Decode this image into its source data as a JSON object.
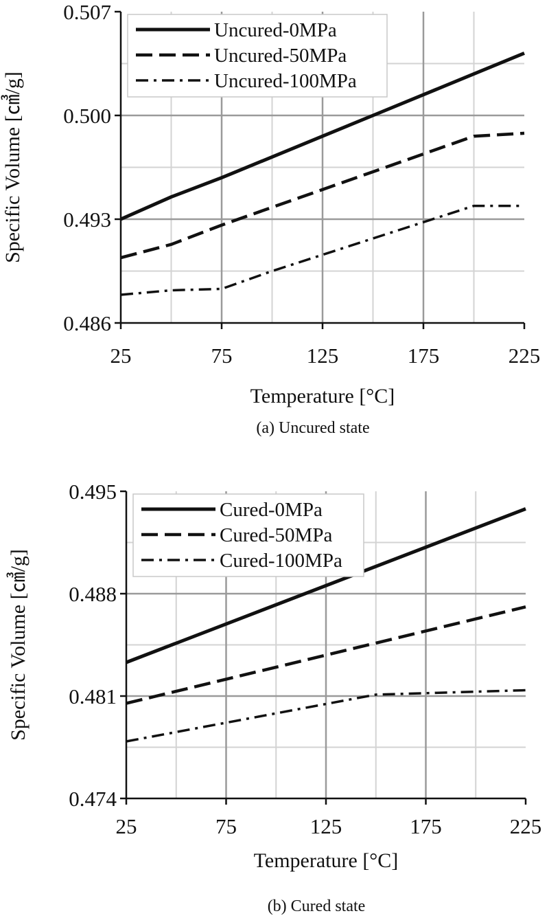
{
  "chart_data": [
    {
      "type": "line",
      "caption": "(a) Uncured state",
      "xlabel": "Temperature [°C]",
      "ylabel": "Specific Volume [㎤/g]",
      "xlim": [
        25,
        225
      ],
      "ylim": [
        0.486,
        0.507
      ],
      "xticks": [
        "25",
        "75",
        "125",
        "175",
        "225"
      ],
      "yticks": [
        "0.486",
        "0.493",
        "0.500",
        "0.507"
      ],
      "grid": true,
      "legend_position": "top-left",
      "series": [
        {
          "name": "Uncured-0MPa",
          "style": "solid",
          "x": [
            25,
            50,
            75,
            100,
            125,
            150,
            175,
            200,
            225
          ],
          "y": [
            0.493,
            0.4945,
            0.4958,
            0.4972,
            0.4986,
            0.5,
            0.5014,
            0.5028,
            0.5042
          ]
        },
        {
          "name": "Uncured-50MPa",
          "style": "dashed",
          "x": [
            25,
            50,
            75,
            100,
            125,
            150,
            175,
            200,
            225
          ],
          "y": [
            0.4904,
            0.4913,
            0.4926,
            0.4938,
            0.495,
            0.4962,
            0.4974,
            0.4986,
            0.4988
          ]
        },
        {
          "name": "Uncured-100MPa",
          "style": "dashdot",
          "x": [
            25,
            50,
            75,
            100,
            125,
            150,
            175,
            200,
            225
          ],
          "y": [
            0.4879,
            0.4882,
            0.4883,
            0.4895,
            0.4906,
            0.4917,
            0.4928,
            0.4939,
            0.4939
          ]
        }
      ]
    },
    {
      "type": "line",
      "caption": "(b) Cured state",
      "xlabel": "Temperature [°C]",
      "ylabel": "Specific Volume [㎤/g]",
      "xlim": [
        25,
        225
      ],
      "ylim": [
        0.474,
        0.495
      ],
      "xticks": [
        "25",
        "75",
        "125",
        "175",
        "225"
      ],
      "yticks": [
        "0.474",
        "0.481",
        "0.488",
        "0.495"
      ],
      "grid": true,
      "legend_position": "top-left",
      "series": [
        {
          "name": "Cured-0MPa",
          "style": "solid",
          "x": [
            25,
            225
          ],
          "y": [
            0.4833,
            0.4938
          ]
        },
        {
          "name": "Cured-50MPa",
          "style": "dashed",
          "x": [
            25,
            225
          ],
          "y": [
            0.4805,
            0.4871
          ]
        },
        {
          "name": "Cured-100MPa",
          "style": "dashdot",
          "x": [
            25,
            150,
            225
          ],
          "y": [
            0.4779,
            0.4811,
            0.4814
          ]
        }
      ]
    }
  ]
}
